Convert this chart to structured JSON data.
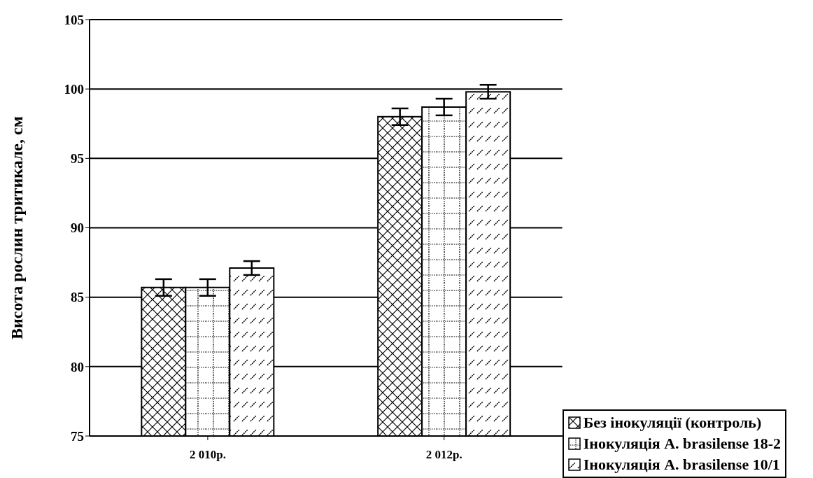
{
  "chart_data": {
    "type": "bar",
    "ylabel": "Висота рослин тритикале, см",
    "categories": [
      "2 010р.",
      "2 012р."
    ],
    "series": [
      {
        "name": "Без інокуляції (контроль)",
        "color": "#000000",
        "values": [
          85.7,
          98.0
        ],
        "errors": [
          0.6,
          0.6
        ]
      },
      {
        "name": "Інокуляція A. brasilense 18-2",
        "color": "#000000",
        "values": [
          85.7,
          98.7
        ],
        "errors": [
          0.6,
          0.6
        ]
      },
      {
        "name": "Інокуляція A. brasilense 10/1",
        "color": "#000000",
        "values": [
          87.1,
          99.8
        ],
        "errors": [
          0.5,
          0.5
        ]
      }
    ],
    "ylim": [
      75,
      105
    ],
    "yticks": [
      75,
      80,
      85,
      90,
      95,
      100,
      105
    ],
    "grid": "y",
    "legend": "bottom right"
  }
}
